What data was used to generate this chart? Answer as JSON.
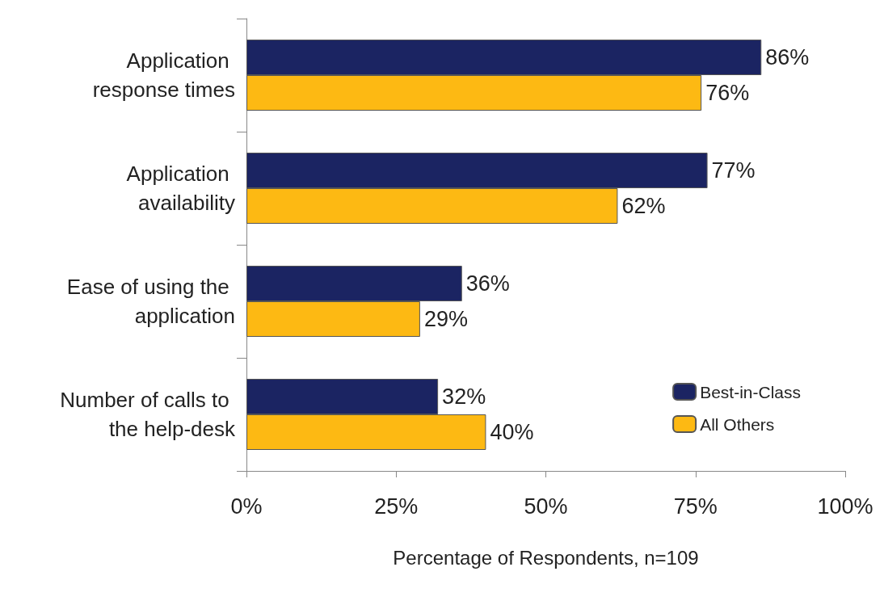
{
  "chart_data": {
    "type": "bar",
    "orientation": "horizontal",
    "xlabel": "Percentage of Respondents, n=109",
    "categories": [
      "Application response times",
      "Application availability",
      "Ease of using the application",
      "Number of calls to the help-desk"
    ],
    "series": [
      {
        "name": "Best-in-Class",
        "color": "#1b2462",
        "values": [
          86,
          77,
          36,
          32
        ],
        "value_labels": [
          "86%",
          "77%",
          "36%",
          "32%"
        ]
      },
      {
        "name": "All Others",
        "color": "#fdb913",
        "values": [
          76,
          62,
          29,
          40
        ],
        "value_labels": [
          "76%",
          "62%",
          "29%",
          "40%"
        ]
      }
    ],
    "xlim": [
      0,
      100
    ],
    "xticks": [
      {
        "value": 0,
        "label": "0%"
      },
      {
        "value": 25,
        "label": "25%"
      },
      {
        "value": 50,
        "label": "50%"
      },
      {
        "value": 75,
        "label": "75%"
      },
      {
        "value": 100,
        "label": "100%"
      }
    ],
    "legend": "bottom right",
    "grid": false
  }
}
